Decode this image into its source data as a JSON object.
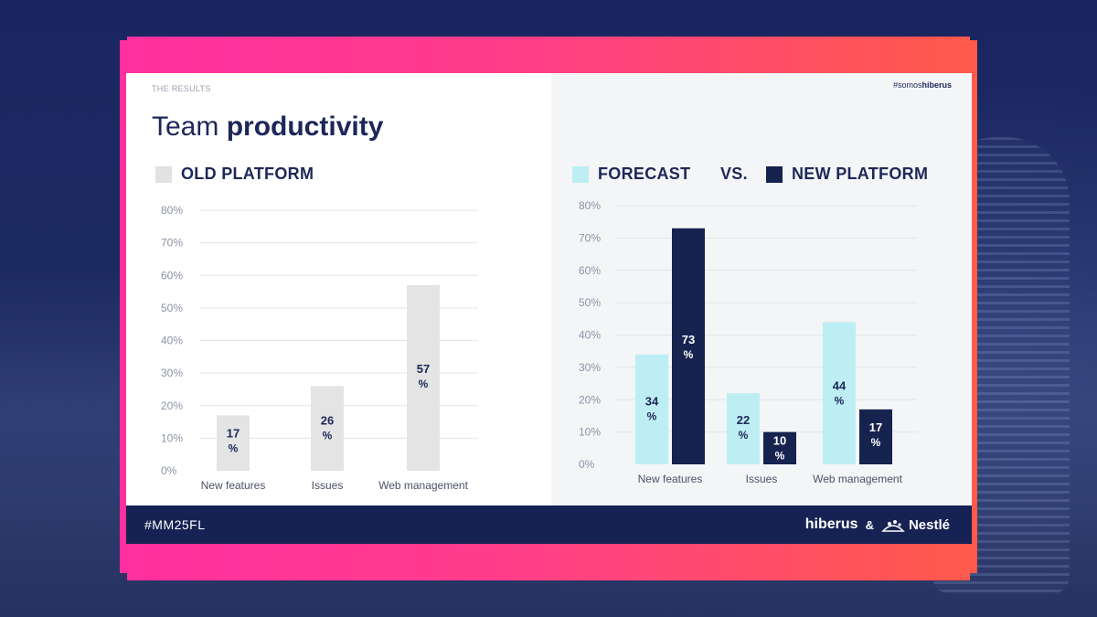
{
  "slide": {
    "eyebrow": "THE RESULTS",
    "hashtag_prefix": "#somos",
    "hashtag_brand": "hiberus",
    "title_light": "Team ",
    "title_bold": "productivity"
  },
  "legend": {
    "old_platform": "OLD PLATFORM",
    "forecast": "FORECAST",
    "vs": "VS.",
    "new_platform": "NEW PLATFORM"
  },
  "colors": {
    "old": "#e4e4e4",
    "forecast": "#bdeef4",
    "new": "#16234f",
    "text_dark": "#1d2758",
    "grid": "#dde7ea"
  },
  "footer": {
    "hashtag": "#MM25FL",
    "brand1": "hiberus",
    "amp": "&",
    "brand2": "Nestlé"
  },
  "chart_data": [
    {
      "type": "bar",
      "title": "OLD PLATFORM",
      "categories": [
        "New features",
        "Issues",
        "Web management"
      ],
      "series": [
        {
          "name": "OLD PLATFORM",
          "values": [
            17,
            26,
            57
          ]
        }
      ],
      "ylim": [
        0,
        80
      ],
      "yticks": [
        "0%",
        "10%",
        "20%",
        "30%",
        "40%",
        "50%",
        "60%",
        "70%",
        "80%"
      ],
      "data_labels": [
        [
          "17",
          "%"
        ],
        [
          "26",
          "%"
        ],
        [
          "57",
          "%"
        ]
      ]
    },
    {
      "type": "bar",
      "title": "FORECAST VS. NEW PLATFORM",
      "categories": [
        "New features",
        "Issues",
        "Web management"
      ],
      "series": [
        {
          "name": "FORECAST",
          "values": [
            34,
            22,
            44
          ]
        },
        {
          "name": "NEW PLATFORM",
          "values": [
            73,
            10,
            17
          ]
        }
      ],
      "ylim": [
        0,
        80
      ],
      "yticks": [
        "0%",
        "10%",
        "20%",
        "30%",
        "40%",
        "50%",
        "60%",
        "70%",
        "80%"
      ],
      "data_labels": [
        [
          [
            "34",
            "%"
          ],
          [
            "22",
            "%"
          ],
          [
            "44",
            "%"
          ]
        ],
        [
          [
            "73",
            "%"
          ],
          [
            "10",
            "%"
          ],
          [
            "17",
            "%"
          ]
        ]
      ]
    }
  ]
}
